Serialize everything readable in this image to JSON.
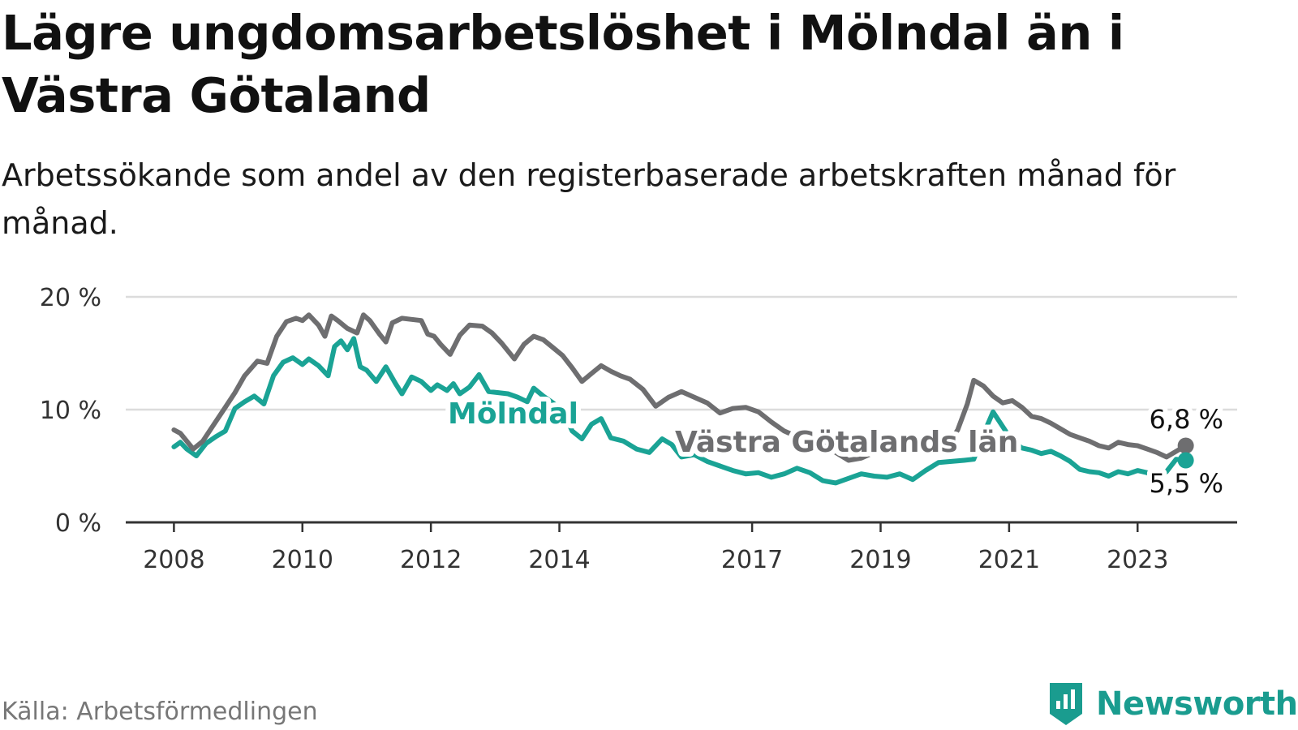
{
  "title": "Lägre ungdomsarbetslöshet i Mölndal än i Västra Götaland",
  "subtitle": "Arbetssökande som andel av den registerbaserade arbetskraften månad för månad.",
  "source": "Källa: Arbetsförmedlingen",
  "brand": {
    "name": "Newsworthy",
    "icon": "newsworthy-logo-icon",
    "color": "#1a9c8f"
  },
  "colors": {
    "molndal": "#1aa395",
    "vg": "#6e6e70",
    "grid": "#dcdcdc",
    "axis": "#333333"
  },
  "chart_data": {
    "type": "line",
    "title": "Lägre ungdomsarbetslöshet i Mölndal än i Västra Götaland",
    "ylabel": "",
    "xlabel": "",
    "ylim": [
      0,
      20
    ],
    "xlim": [
      2007.25,
      2024.55
    ],
    "y_ticks": [
      0,
      10,
      20
    ],
    "y_tick_labels": [
      "0 %",
      "10 %",
      "20 %"
    ],
    "x_ticks": [
      2008,
      2010,
      2012,
      2014,
      2017,
      2019,
      2021,
      2023
    ],
    "x_tick_labels": [
      "2008",
      "2010",
      "2012",
      "2014",
      "2017",
      "2019",
      "2021",
      "2023"
    ],
    "grid": true,
    "series": [
      {
        "name": "Västra Götalands län",
        "label": "Västra Götalands län",
        "end_label": "6,8 %",
        "x": [
          2008.0,
          2008.1,
          2008.2,
          2008.3,
          2008.45,
          2008.6,
          2008.8,
          2008.95,
          2009.1,
          2009.3,
          2009.45,
          2009.6,
          2009.75,
          2009.9,
          2010.0,
          2010.1,
          2010.25,
          2010.35,
          2010.45,
          2010.55,
          2010.7,
          2010.85,
          2010.95,
          2011.05,
          2011.2,
          2011.3,
          2011.4,
          2011.55,
          2011.7,
          2011.85,
          2011.95,
          2012.05,
          2012.15,
          2012.3,
          2012.45,
          2012.6,
          2012.8,
          2012.95,
          2013.1,
          2013.3,
          2013.45,
          2013.6,
          2013.75,
          2013.9,
          2014.05,
          2014.2,
          2014.35,
          2014.5,
          2014.65,
          2014.8,
          2014.95,
          2015.1,
          2015.3,
          2015.5,
          2015.7,
          2015.9,
          2016.1,
          2016.3,
          2016.5,
          2016.7,
          2016.9,
          2017.1,
          2017.3,
          2017.5,
          2017.7,
          2017.9,
          2018.1,
          2018.3,
          2018.5,
          2018.7,
          2018.9,
          2019.1,
          2019.3,
          2019.5,
          2019.7,
          2019.9,
          2020.05,
          2020.2,
          2020.35,
          2020.45,
          2020.6,
          2020.75,
          2020.9,
          2021.05,
          2021.2,
          2021.35,
          2021.5,
          2021.65,
          2021.8,
          2021.95,
          2022.1,
          2022.25,
          2022.4,
          2022.55,
          2022.7,
          2022.85,
          2023.0,
          2023.15,
          2023.3,
          2023.45,
          2023.6,
          2023.75
        ],
        "values": [
          8.2,
          7.9,
          7.2,
          6.5,
          7.2,
          8.5,
          10.2,
          11.5,
          13.0,
          14.3,
          14.1,
          16.5,
          17.8,
          18.1,
          17.9,
          18.4,
          17.5,
          16.5,
          18.3,
          17.9,
          17.2,
          16.8,
          18.4,
          17.9,
          16.7,
          16.0,
          17.7,
          18.1,
          18.0,
          17.9,
          16.7,
          16.5,
          15.8,
          14.9,
          16.6,
          17.5,
          17.4,
          16.8,
          15.9,
          14.5,
          15.8,
          16.5,
          16.2,
          15.5,
          14.8,
          13.7,
          12.5,
          13.2,
          13.9,
          13.4,
          13.0,
          12.7,
          11.8,
          10.3,
          11.1,
          11.6,
          11.1,
          10.6,
          9.7,
          10.1,
          10.2,
          9.8,
          8.9,
          8.1,
          7.6,
          7.7,
          6.9,
          6.2,
          5.5,
          5.7,
          6.2,
          6.9,
          6.5,
          6.3,
          6.6,
          6.4,
          6.9,
          8.2,
          10.5,
          12.6,
          12.1,
          11.2,
          10.6,
          10.8,
          10.2,
          9.4,
          9.2,
          8.8,
          8.3,
          7.8,
          7.5,
          7.2,
          6.8,
          6.6,
          7.1,
          6.9,
          6.8,
          6.5,
          6.2,
          5.8,
          6.3,
          6.8
        ]
      },
      {
        "name": "Mölndal",
        "label": "Mölndal",
        "end_label": "5,5 %",
        "x": [
          2008.0,
          2008.1,
          2008.2,
          2008.35,
          2008.5,
          2008.65,
          2008.8,
          2008.95,
          2009.1,
          2009.25,
          2009.4,
          2009.55,
          2009.7,
          2009.85,
          2010.0,
          2010.1,
          2010.25,
          2010.4,
          2010.5,
          2010.6,
          2010.7,
          2010.8,
          2010.9,
          2011.0,
          2011.15,
          2011.3,
          2011.45,
          2011.55,
          2011.7,
          2011.85,
          2012.0,
          2012.1,
          2012.25,
          2012.35,
          2012.45,
          2012.6,
          2012.75,
          2012.9,
          2013.05,
          2013.2,
          2013.35,
          2013.5,
          2013.6,
          2013.75,
          2013.9,
          2014.05,
          2014.2,
          2014.35,
          2014.5,
          2014.65,
          2014.8,
          2015.0,
          2015.2,
          2015.4,
          2015.6,
          2015.75,
          2015.9,
          2016.1,
          2016.3,
          2016.5,
          2016.7,
          2016.9,
          2017.1,
          2017.3,
          2017.5,
          2017.7,
          2017.9,
          2018.1,
          2018.3,
          2018.5,
          2018.7,
          2018.9,
          2019.1,
          2019.3,
          2019.5,
          2019.7,
          2019.9,
          2020.1,
          2020.3,
          2020.45,
          2020.6,
          2020.75,
          2020.9,
          2021.05,
          2021.2,
          2021.35,
          2021.5,
          2021.65,
          2021.8,
          2021.95,
          2022.1,
          2022.25,
          2022.4,
          2022.55,
          2022.7,
          2022.85,
          2023.0,
          2023.15,
          2023.3,
          2023.45,
          2023.6,
          2023.75
        ],
        "values": [
          6.7,
          7.1,
          6.5,
          5.9,
          7.0,
          7.6,
          8.1,
          10.1,
          10.7,
          11.2,
          10.5,
          13.0,
          14.2,
          14.6,
          14.0,
          14.5,
          13.9,
          13.0,
          15.6,
          16.1,
          15.3,
          16.3,
          13.8,
          13.5,
          12.5,
          13.8,
          12.3,
          11.4,
          12.9,
          12.5,
          11.7,
          12.2,
          11.7,
          12.3,
          11.4,
          12.0,
          13.1,
          11.6,
          11.5,
          11.4,
          11.1,
          10.7,
          11.9,
          11.2,
          10.6,
          9.9,
          8.1,
          7.4,
          8.7,
          9.2,
          7.5,
          7.2,
          6.5,
          6.2,
          7.4,
          6.9,
          5.8,
          6.0,
          5.4,
          5.0,
          4.6,
          4.3,
          4.4,
          4.0,
          4.3,
          4.8,
          4.4,
          3.7,
          3.5,
          3.9,
          4.3,
          4.1,
          4.0,
          4.3,
          3.8,
          4.6,
          5.3,
          5.4,
          5.5,
          5.6,
          7.8,
          9.8,
          8.5,
          7.2,
          6.6,
          6.4,
          6.1,
          6.3,
          5.9,
          5.4,
          4.7,
          4.5,
          4.4,
          4.1,
          4.5,
          4.3,
          4.6,
          4.4,
          3.9,
          4.5,
          5.6,
          5.5
        ]
      }
    ]
  }
}
